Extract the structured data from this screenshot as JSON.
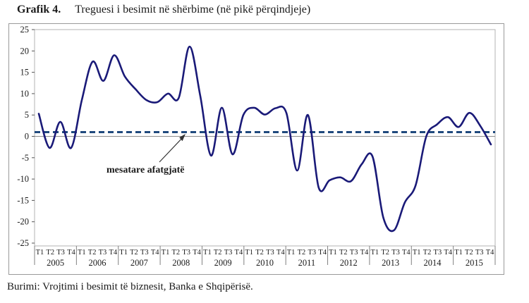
{
  "header": {
    "title_label": "Grafik 4.",
    "title_text": "Treguesi i besimit në shërbime (në pikë përqindjeje)"
  },
  "footer": {
    "source": "Burimi: Vrojtimi i besimit të biznesit, Banka e Shqipërisë."
  },
  "chart_data": {
    "type": "line",
    "title": "Treguesi i besimit në shërbime (në pikë përqindjeje)",
    "x_quarter_labels": [
      "T1",
      "T2",
      "T3",
      "T4"
    ],
    "years": [
      "2005",
      "2006",
      "2007",
      "2008",
      "2009",
      "2010",
      "2011",
      "2012",
      "2013",
      "2014",
      "2015"
    ],
    "series": [
      {
        "name": "Treguesi i besimit në shërbime",
        "color": "#1a1a78",
        "x_start": "T1 2005",
        "x_end": "T3 2015",
        "values": [
          5.3,
          -2.7,
          3.4,
          -2.7,
          8.5,
          17.5,
          13,
          19,
          14,
          11,
          8.5,
          8,
          10,
          9,
          21,
          9.5,
          -4.5,
          6.7,
          -4.2,
          5,
          6.7,
          5.1,
          6.6,
          5.5,
          -8,
          5,
          -12,
          -10.3,
          -9.6,
          -10.5,
          -6.5,
          -4.7,
          -19,
          -22,
          -15.5,
          -11.5,
          0,
          2.8,
          4.5,
          2.2,
          5.5,
          2.5,
          -1.9
        ]
      }
    ],
    "average_line": {
      "label": "mesatare afatgjatë",
      "value": 1,
      "color": "#1f497d",
      "style": "dashed"
    },
    "y_ticks": [
      25,
      20,
      15,
      10,
      5,
      0,
      -5,
      -10,
      -15,
      -20,
      -25
    ],
    "ylim": [
      -25,
      25
    ],
    "zero_line": true,
    "grid": false,
    "legend": "none"
  },
  "colors": {
    "line": "#1a1a78",
    "average": "#1f497d",
    "zero_line": "#8c8c8c",
    "plot_border": "#b3b3b3",
    "box_border": "#9a9a9a",
    "annotation_arrow": "#333333",
    "text": "#1a1a1a"
  }
}
